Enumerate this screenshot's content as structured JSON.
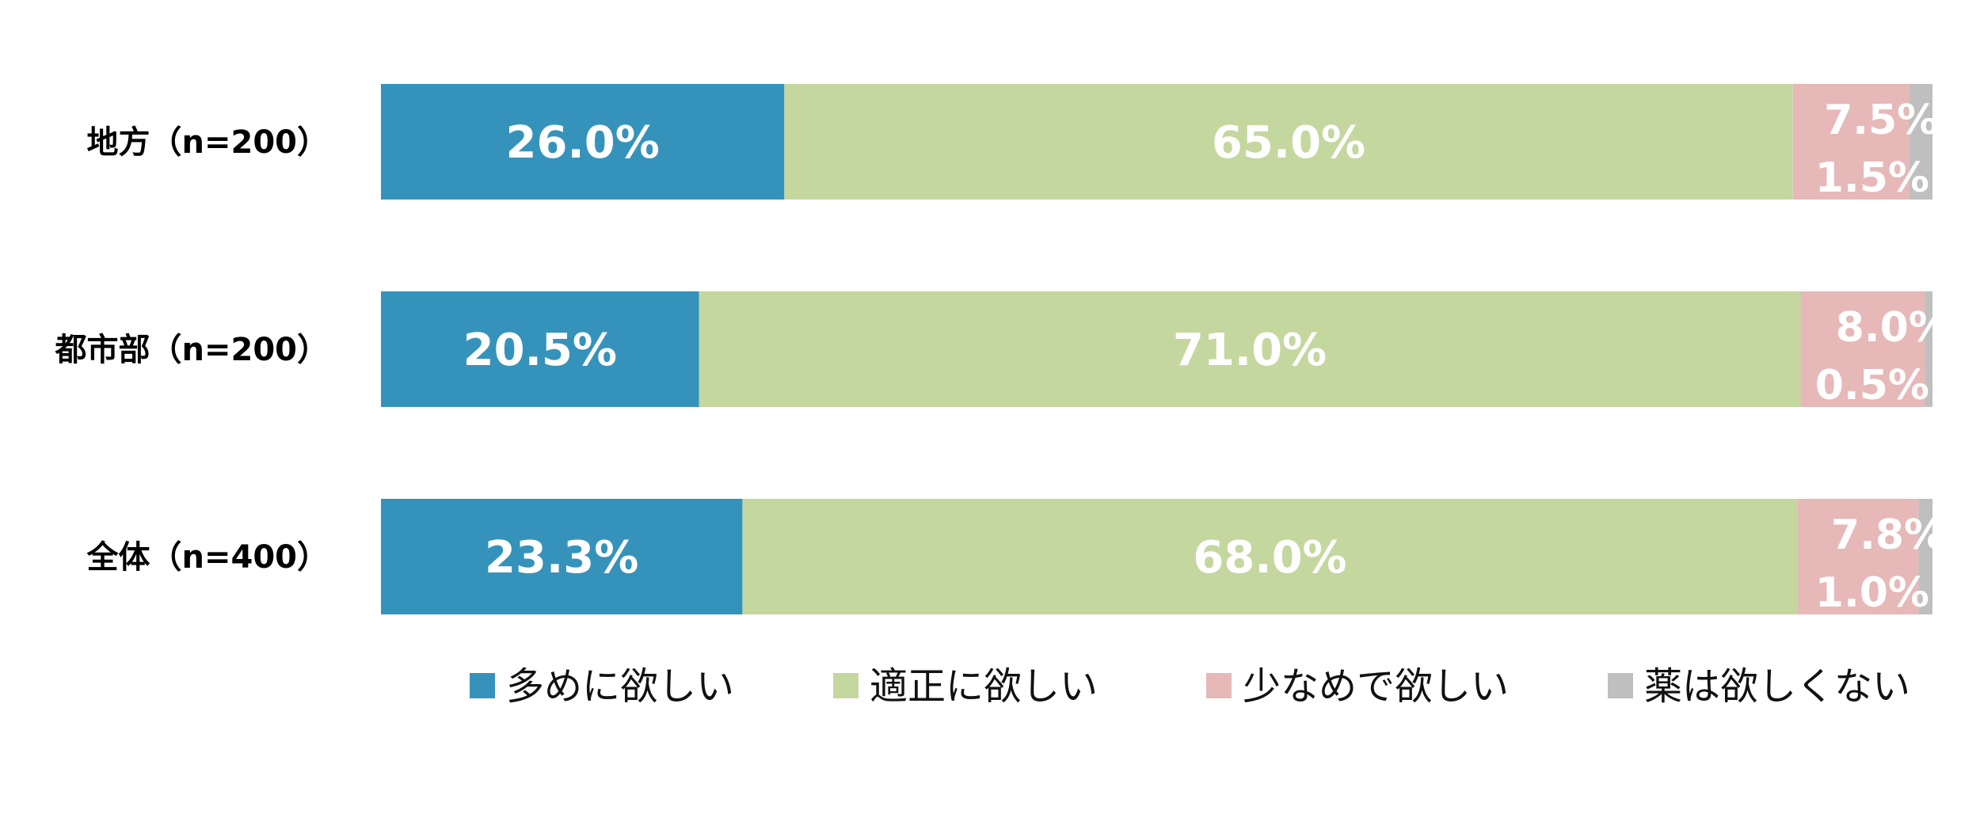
{
  "chart_data": {
    "type": "bar",
    "orientation": "horizontal",
    "stacked": true,
    "percent_stacked": true,
    "categories": [
      "地方（n=200）",
      "都市部（n=200）",
      "全体（n=400）"
    ],
    "series": [
      {
        "name": "多めに欲しい",
        "color": "#3593BB",
        "values": [
          26.0,
          20.5,
          23.3
        ],
        "labels": [
          "26.0%",
          "20.5%",
          "23.3%"
        ]
      },
      {
        "name": "適正に欲しい",
        "color": "#C4D79F",
        "values": [
          65.0,
          71.0,
          68.0
        ],
        "labels": [
          "65.0%",
          "71.0%",
          "68.0%"
        ]
      },
      {
        "name": "少なめで欲しい",
        "color": "#E6B8B8",
        "values": [
          7.5,
          8.0,
          7.8
        ],
        "labels": [
          "7.5%",
          "8.0%",
          "7.8%"
        ]
      },
      {
        "name": "薬は欲しくない",
        "color": "#BFBFBF",
        "values": [
          1.5,
          0.5,
          1.0
        ],
        "labels": [
          "1.5%",
          "0.5%",
          "1.0%"
        ]
      }
    ],
    "xlim": [
      0,
      100
    ],
    "grid": false,
    "legend": "bottom"
  }
}
